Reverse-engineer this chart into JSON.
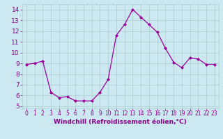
{
  "x": [
    0,
    1,
    2,
    3,
    4,
    5,
    6,
    7,
    8,
    9,
    10,
    11,
    12,
    13,
    14,
    15,
    16,
    17,
    18,
    19,
    20,
    21,
    22,
    23
  ],
  "y": [
    8.9,
    9.0,
    9.2,
    6.3,
    5.8,
    5.9,
    5.5,
    5.5,
    5.5,
    6.3,
    7.5,
    11.6,
    12.6,
    14.0,
    13.3,
    12.6,
    11.9,
    10.4,
    9.1,
    8.6,
    9.5,
    9.4,
    8.9,
    8.9
  ],
  "line_color": "#990099",
  "marker": "D",
  "marker_size": 2,
  "bg_color": "#cce8f0",
  "grid_color": "#aacccc",
  "xlabel": "Windchill (Refroidissement éolien,°C)",
  "tick_color": "#880088",
  "xlim": [
    -0.5,
    23.5
  ],
  "ylim": [
    4.8,
    14.5
  ],
  "yticks": [
    5,
    6,
    7,
    8,
    9,
    10,
    11,
    12,
    13,
    14
  ],
  "xticks": [
    0,
    1,
    2,
    3,
    4,
    5,
    6,
    7,
    8,
    9,
    10,
    11,
    12,
    13,
    14,
    15,
    16,
    17,
    18,
    19,
    20,
    21,
    22,
    23
  ],
  "xlabel_fontsize": 6.5,
  "xtick_fontsize": 5.5,
  "ytick_fontsize": 6.5
}
